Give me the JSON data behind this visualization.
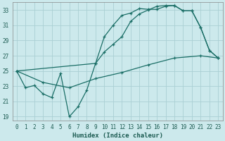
{
  "xlabel": "Humidex (Indice chaleur)",
  "background_color": "#cce9ec",
  "grid_color": "#aacfd4",
  "line_color": "#1a6e66",
  "xlim": [
    -0.5,
    23.5
  ],
  "ylim": [
    18.5,
    34.0
  ],
  "xticks": [
    0,
    1,
    2,
    3,
    4,
    5,
    6,
    7,
    8,
    9,
    10,
    11,
    12,
    13,
    14,
    15,
    16,
    17,
    18,
    19,
    20,
    21,
    22,
    23
  ],
  "yticks": [
    19,
    21,
    23,
    25,
    27,
    29,
    31,
    33
  ],
  "line1_x": [
    0,
    1,
    2,
    3,
    4,
    5,
    6,
    7,
    8,
    9,
    10,
    11,
    12,
    13,
    14,
    15,
    16,
    17,
    18,
    19,
    20,
    21,
    22,
    23
  ],
  "line1_y": [
    25.0,
    22.8,
    23.1,
    22.0,
    21.5,
    24.7,
    19.0,
    20.3,
    22.5,
    26.0,
    29.5,
    31.0,
    32.3,
    32.6,
    33.2,
    33.1,
    33.1,
    33.5,
    33.6,
    32.9,
    32.9,
    30.7,
    27.7,
    26.7
  ],
  "line2_x": [
    0,
    3,
    6,
    9,
    12,
    15,
    18,
    21,
    23
  ],
  "line2_y": [
    25.0,
    23.5,
    22.8,
    24.0,
    24.8,
    25.8,
    26.7,
    27.0,
    26.7
  ],
  "line3_x": [
    0,
    9,
    10,
    11,
    12,
    13,
    14,
    15,
    16,
    17,
    18,
    19,
    20,
    21,
    22,
    23
  ],
  "line3_y": [
    25.0,
    26.0,
    27.5,
    28.5,
    29.5,
    31.5,
    32.5,
    33.0,
    33.5,
    33.6,
    33.6,
    32.9,
    32.9,
    30.7,
    27.7,
    26.7
  ]
}
